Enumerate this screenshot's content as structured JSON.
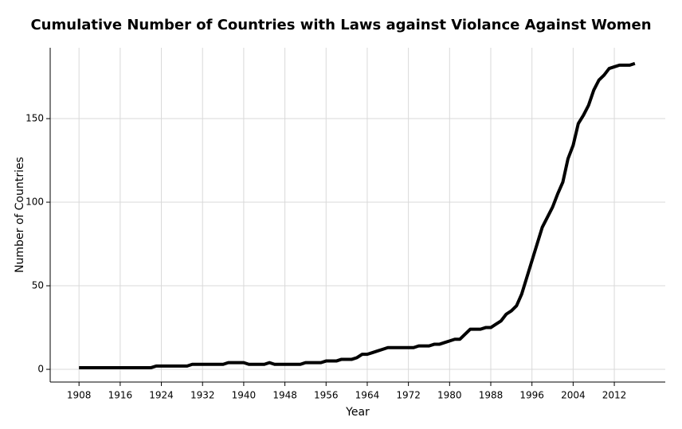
{
  "chart_data": {
    "type": "line",
    "title": "Cumulative Number of Countries with Laws against Violance Against Women",
    "x_label": "Year",
    "y_label": "Number of Countries",
    "x": [
      1908,
      1909,
      1910,
      1911,
      1912,
      1913,
      1914,
      1915,
      1916,
      1917,
      1918,
      1919,
      1920,
      1921,
      1922,
      1923,
      1924,
      1925,
      1926,
      1927,
      1928,
      1929,
      1930,
      1931,
      1932,
      1933,
      1934,
      1935,
      1936,
      1937,
      1938,
      1939,
      1940,
      1941,
      1942,
      1943,
      1944,
      1945,
      1946,
      1947,
      1948,
      1949,
      1950,
      1951,
      1952,
      1953,
      1954,
      1955,
      1956,
      1957,
      1958,
      1959,
      1960,
      1961,
      1962,
      1963,
      1964,
      1965,
      1966,
      1967,
      1968,
      1969,
      1970,
      1971,
      1972,
      1973,
      1974,
      1975,
      1976,
      1977,
      1978,
      1979,
      1980,
      1981,
      1982,
      1983,
      1984,
      1985,
      1986,
      1987,
      1988,
      1989,
      1990,
      1991,
      1992,
      1993,
      1994,
      1995,
      1996,
      1997,
      1998,
      1999,
      2000,
      2001,
      2002,
      2003,
      2004,
      2005,
      2006,
      2007,
      2008,
      2009,
      2010,
      2011,
      2012,
      2013,
      2014,
      2015,
      2016
    ],
    "series": [
      {
        "color": "#000000",
        "values": [
          1,
          1,
          1,
          1,
          1,
          1,
          1,
          1,
          1,
          1,
          1,
          1,
          1,
          1,
          1,
          2,
          2,
          2,
          2,
          2,
          2,
          2,
          3,
          3,
          3,
          3,
          3,
          3,
          3,
          4,
          4,
          4,
          4,
          3,
          3,
          3,
          3,
          4,
          3,
          3,
          3,
          3,
          3,
          3,
          4,
          4,
          4,
          4,
          5,
          5,
          5,
          6,
          6,
          6,
          7,
          9,
          9,
          10,
          11,
          12,
          13,
          13,
          13,
          13,
          13,
          13,
          14,
          14,
          14,
          15,
          15,
          16,
          17,
          18,
          18,
          21,
          24,
          24,
          24,
          25,
          25,
          27,
          29,
          33,
          35,
          38,
          45,
          55,
          65,
          75,
          85,
          91,
          97,
          105,
          112,
          126,
          134,
          147,
          152,
          158,
          167,
          173,
          176,
          180,
          181,
          182,
          182,
          182,
          183
        ]
      }
    ],
    "xlim": [
      1902.4,
      2021.9
    ],
    "ylim": [
      -7.6,
      192.4
    ],
    "xticks": [
      1908,
      1916,
      1924,
      1932,
      1940,
      1948,
      1956,
      1964,
      1972,
      1980,
      1988,
      1996,
      2004,
      2012
    ],
    "yticks": [
      0,
      50,
      100,
      150
    ],
    "grid": true
  }
}
